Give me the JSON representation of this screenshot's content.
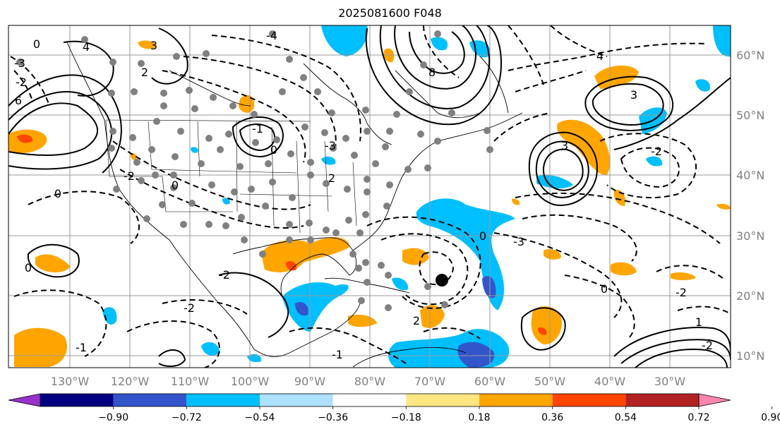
{
  "title": "2025081600 F048",
  "lon_labels": [
    "130°W",
    "120°W",
    "110°W",
    "100°W",
    "90°W",
    "80°W",
    "70°W",
    "60°W",
    "50°W",
    "40°W",
    "30°W"
  ],
  "lat_labels": [
    "60°N",
    "50°N",
    "40°N",
    "30°N",
    "20°N",
    "10°N"
  ],
  "colorbar": {
    "tick_labels": [
      "−0.90",
      "−0.72",
      "−0.54",
      "−0.36",
      "−0.18",
      "0.18",
      "0.36",
      "0.54",
      "0.72",
      "0.90"
    ],
    "colors": [
      "#9932cc",
      "#000080",
      "#3355cc",
      "#00bfff",
      "#aee0ff",
      "#ffffff",
      "#ffe680",
      "#ffa500",
      "#ff4500",
      "#b22222",
      "#ff85b0"
    ]
  },
  "contour_labels": [
    "0",
    "-2",
    "-3",
    "3",
    "4",
    "6",
    "8",
    "-4",
    "2",
    "-1",
    "0",
    "-3",
    "3",
    "-2",
    "2",
    "0",
    "-2",
    "0",
    "-2",
    "-2",
    "-1",
    "2",
    "0",
    "-3",
    "0",
    "-2",
    "1",
    "-2",
    "0",
    "-1",
    "4",
    "3"
  ],
  "palette": {
    "orange": "#ffa500",
    "red": "#ff4500",
    "blue": "#00bfff",
    "darkblue": "#3355cc",
    "grey_dots": "#808080"
  }
}
